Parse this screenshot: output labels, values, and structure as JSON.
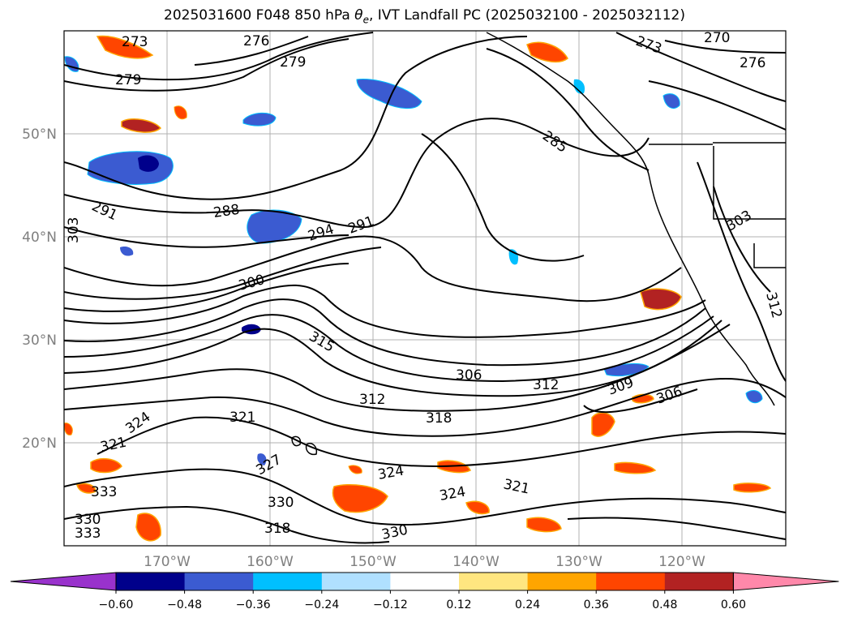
{
  "title": {
    "prefix": "2025031600 F048 850 hPa ",
    "theta": "θ",
    "sub": "e",
    "suffix": ", IVT Landfall PC (2025032100 - 2025032112)"
  },
  "axes": {
    "lat_labels": [
      "50°N",
      "40°N",
      "30°N",
      "20°N"
    ],
    "lon_labels": [
      "170°W",
      "160°W",
      "150°W",
      "140°W",
      "130°W",
      "120°W"
    ]
  },
  "colorbar": {
    "colors": [
      "#9932cc",
      "#00008b",
      "#3b5bd1",
      "#00bfff",
      "#b0e0ff",
      "#ffffff",
      "#ffe680",
      "#ffa500",
      "#ff4500",
      "#b22222",
      "#ff88aa"
    ],
    "tick_labels": [
      "−0.60",
      "−0.48",
      "−0.36",
      "−0.24",
      "−0.12",
      "0.12",
      "0.24",
      "0.36",
      "0.48",
      "0.60"
    ]
  },
  "contour_labels": [
    "273",
    "276",
    "279",
    "279",
    "285",
    "288",
    "291",
    "294",
    "291",
    "300",
    "303",
    "303",
    "306",
    "306",
    "309",
    "312",
    "312",
    "312",
    "315",
    "318",
    "318",
    "321",
    "321",
    "321",
    "324",
    "324",
    "324",
    "327",
    "330",
    "330",
    "330",
    "333",
    "333",
    "270",
    "276",
    "273"
  ]
}
